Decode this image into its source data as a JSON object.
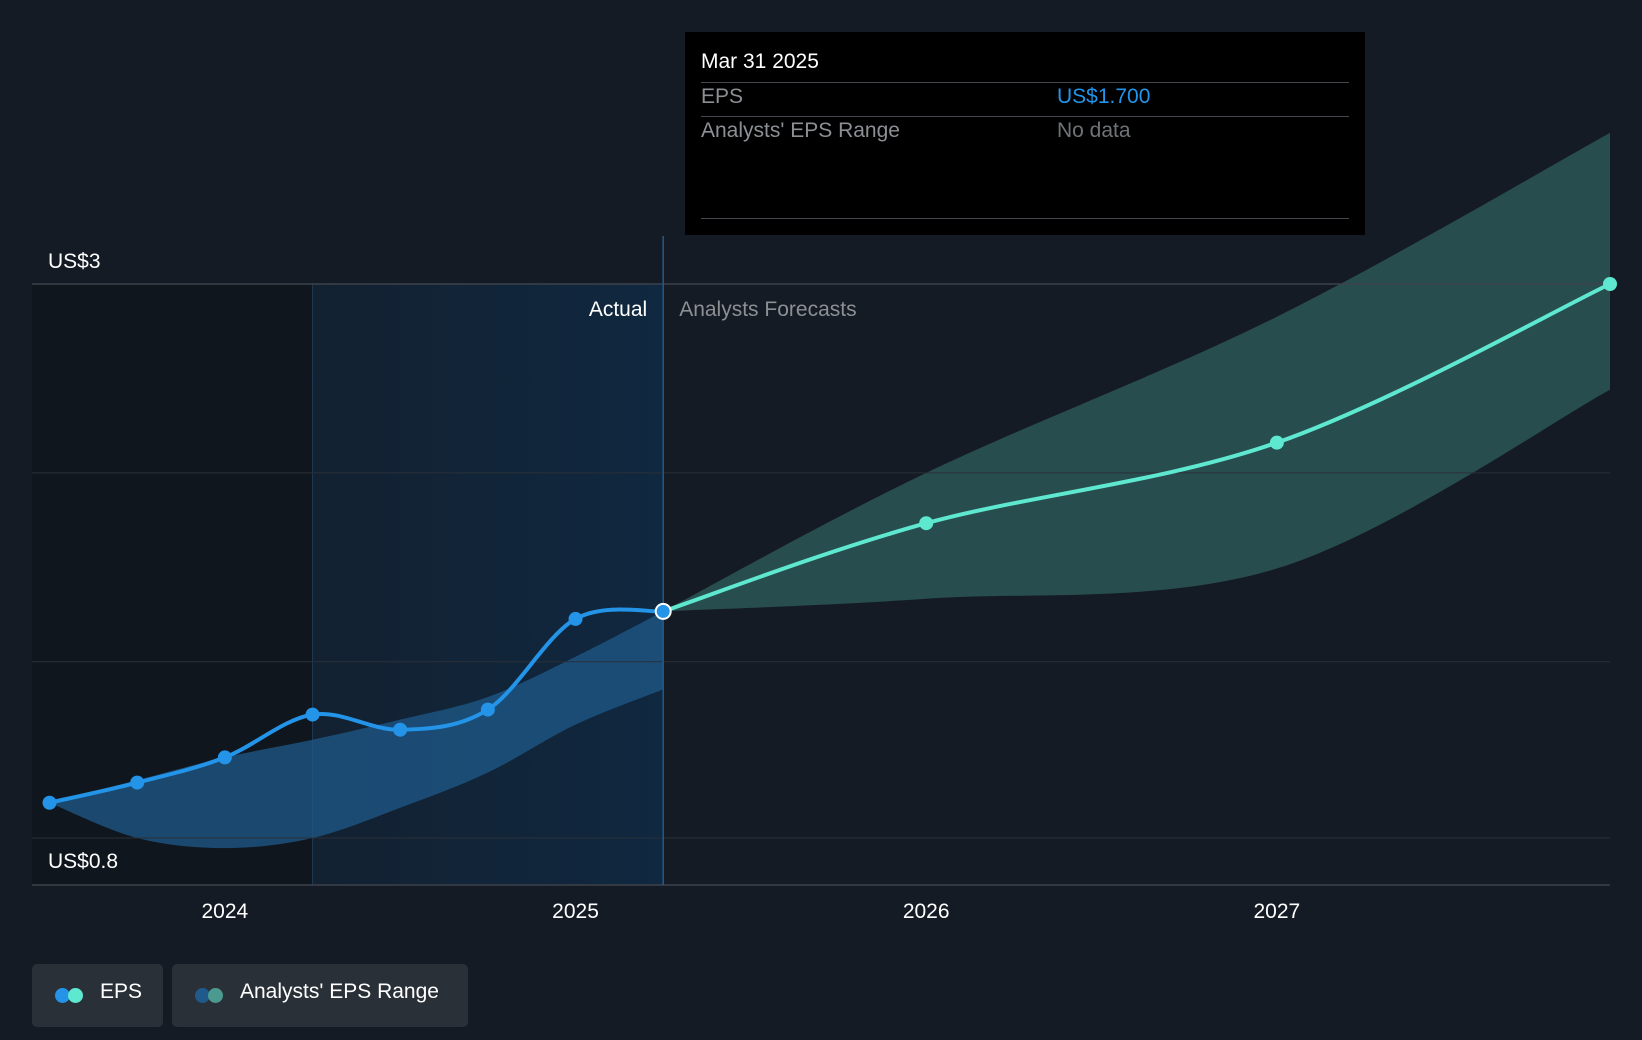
{
  "chart_data": {
    "type": "line",
    "y_axis": {
      "top_label": "US$3",
      "bottom_label": "US$0.8",
      "ylim": [
        0.8,
        3.0
      ]
    },
    "x_axis": {
      "ticks": [
        "2024",
        "2025",
        "2026",
        "2027"
      ],
      "range": [
        2023.45,
        2027.95
      ]
    },
    "divider_x": 2025.25,
    "highlight_start_x": 2024.25,
    "region_labels": {
      "actual": "Actual",
      "forecast": "Analysts Forecasts"
    },
    "series": [
      {
        "name": "EPS",
        "segment": "actual",
        "x": [
          2023.5,
          2023.75,
          2024.0,
          2024.25,
          2024.5,
          2024.75,
          2025.0,
          2025.25
        ],
        "values": [
          0.94,
          1.02,
          1.12,
          1.29,
          1.23,
          1.31,
          1.67,
          1.7
        ]
      },
      {
        "name": "EPS",
        "segment": "forecast",
        "x": [
          2025.25,
          2026.0,
          2027.0,
          2027.95
        ],
        "values": [
          1.7,
          2.05,
          2.37,
          3.0
        ]
      }
    ],
    "range_bands": [
      {
        "name": "Analysts' EPS Range",
        "segment": "actual",
        "x": [
          2023.5,
          2023.75,
          2024.0,
          2024.25,
          2024.5,
          2024.75,
          2025.0,
          2025.25
        ],
        "high": [
          0.94,
          1.03,
          1.12,
          1.19,
          1.27,
          1.36,
          1.52,
          1.7
        ],
        "low": [
          0.94,
          0.8,
          0.76,
          0.8,
          0.92,
          1.06,
          1.25,
          1.39
        ]
      },
      {
        "name": "Analysts' EPS Range",
        "segment": "forecast",
        "x": [
          2025.25,
          2026.0,
          2027.0,
          2027.95
        ],
        "high": [
          1.7,
          2.25,
          2.87,
          3.6
        ],
        "low": [
          1.7,
          1.75,
          1.87,
          2.58
        ]
      }
    ],
    "colors": {
      "background": "#151b24",
      "left_shade": "#10161e",
      "highlight": "#102840",
      "eps_actual": "#2394e8",
      "eps_forecast": "#5ee8d0",
      "band_actual": "#1f5a8a",
      "band_forecast": "#2d5a5a",
      "grid": "#2a3038",
      "axis": "#3c434c",
      "text": "#ffffff",
      "muted": "#8c8f94"
    }
  },
  "tooltip": {
    "date": "Mar 31 2025",
    "rows": [
      {
        "label": "EPS",
        "value": "US$1.700",
        "color": "#2394e8"
      },
      {
        "label": "Analysts' EPS Range",
        "value": "No data",
        "color": "#6f7378"
      }
    ]
  },
  "legend": [
    {
      "label": "EPS",
      "dot_colors": [
        "#2394e8",
        "#5ee8d0"
      ]
    },
    {
      "label": "Analysts' EPS Range",
      "dot_colors": [
        "#1f5a8a",
        "#4a9a90"
      ]
    }
  ]
}
